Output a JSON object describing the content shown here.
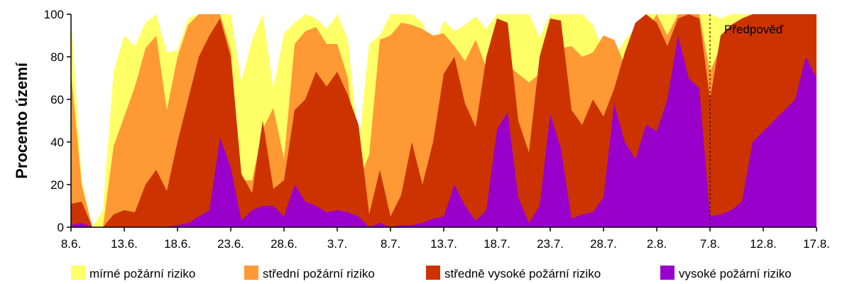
{
  "chart_data": {
    "type": "area",
    "stacked": false,
    "ylabel": "Procento území",
    "xlabel": "",
    "ylim": [
      0,
      100
    ],
    "yticks": [
      0,
      20,
      40,
      60,
      80,
      100
    ],
    "x_tick_labels": [
      "8.6.",
      "13.6.",
      "18.6.",
      "23.6.",
      "28.6.",
      "3.7.",
      "8.7.",
      "13.7.",
      "18.7.",
      "23.7.",
      "28.7.",
      "2.8.",
      "7.8.",
      "12.8.",
      "17.8."
    ],
    "x_tick_index": [
      0,
      5,
      10,
      15,
      20,
      25,
      30,
      35,
      40,
      45,
      50,
      55,
      60,
      65,
      70
    ],
    "forecast_start_index": 60,
    "annotation": "Předpověď",
    "grid": false,
    "legend_position": "bottom",
    "series": [
      {
        "name": "mírné požární riziko",
        "color": "#ffff66",
        "values": [
          100,
          22,
          0,
          8,
          73,
          90,
          85,
          96,
          100,
          82,
          83,
          98,
          100,
          100,
          100,
          100,
          68,
          88,
          100,
          65,
          91,
          96,
          100,
          98,
          93,
          100,
          88,
          38,
          86,
          90,
          100,
          100,
          100,
          96,
          83,
          97,
          92,
          95,
          99,
          93,
          100,
          100,
          100,
          100,
          89,
          100,
          100,
          100,
          100,
          95,
          83,
          79,
          88,
          93,
          100,
          100,
          100,
          100,
          100,
          100,
          100,
          98,
          100,
          100,
          100,
          100,
          100,
          100,
          100,
          100,
          100
        ]
      },
      {
        "name": "střední požární riziko",
        "color": "#ff9933",
        "values": [
          73,
          20,
          0,
          0,
          38,
          52,
          66,
          84,
          90,
          55,
          80,
          95,
          100,
          100,
          100,
          83,
          22,
          22,
          46,
          56,
          32,
          86,
          92,
          94,
          86,
          86,
          70,
          22,
          34,
          88,
          90,
          96,
          95,
          93,
          90,
          91,
          85,
          78,
          88,
          75,
          79,
          76,
          72,
          68,
          72,
          88,
          84,
          85,
          80,
          82,
          90,
          88,
          76,
          82,
          92,
          100,
          90,
          100,
          100,
          100,
          73,
          85,
          92,
          96,
          100,
          100,
          100,
          100,
          100,
          100,
          100
        ]
      },
      {
        "name": "středně vysoké požární riziko",
        "color": "#cc3300",
        "values": [
          11,
          12,
          0,
          0,
          6,
          8,
          7,
          20,
          27,
          17,
          40,
          60,
          80,
          90,
          98,
          80,
          25,
          16,
          50,
          18,
          22,
          55,
          60,
          73,
          66,
          73,
          62,
          48,
          6,
          27,
          5,
          15,
          40,
          20,
          40,
          72,
          80,
          58,
          47,
          80,
          98,
          96,
          50,
          35,
          80,
          98,
          97,
          55,
          48,
          60,
          52,
          65,
          82,
          96,
          100,
          96,
          85,
          98,
          100,
          98,
          60,
          90,
          95,
          98,
          100,
          100,
          100,
          100,
          100,
          100,
          100
        ]
      },
      {
        "name": "vysoké požární riziko",
        "color": "#9900cc",
        "values": [
          1,
          2,
          0,
          0,
          0,
          0,
          0,
          0,
          0,
          0,
          1,
          2,
          5,
          8,
          42,
          28,
          3,
          8,
          10,
          10,
          5,
          20,
          12,
          10,
          7,
          8,
          7,
          5,
          0,
          2,
          0,
          1,
          1,
          2,
          4,
          5,
          20,
          10,
          3,
          8,
          46,
          54,
          14,
          2,
          10,
          53,
          37,
          4,
          6,
          7,
          14,
          58,
          40,
          32,
          48,
          45,
          60,
          90,
          70,
          65,
          5,
          6,
          8,
          12,
          40,
          45,
          50,
          55,
          60,
          80,
          70
        ]
      }
    ]
  }
}
